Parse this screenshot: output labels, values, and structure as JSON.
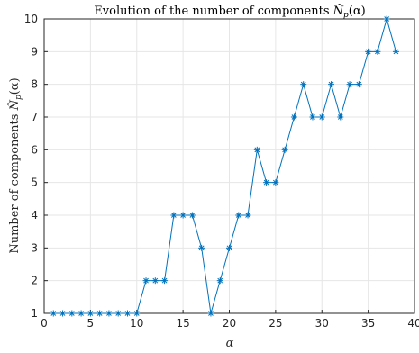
{
  "chart_data": {
    "type": "line",
    "title": "Evolution of the number of components N̂p(α)",
    "title_parts": {
      "prefix": "Evolution of the number of components ",
      "symbol": "N̂",
      "subscript": "p",
      "arg": "(α)"
    },
    "xlabel": "α",
    "ylabel": "Number of components N̂p(α)",
    "ylabel_parts": {
      "prefix": "Number of components ",
      "symbol": "N̂",
      "subscript": "p",
      "arg": "(α)"
    },
    "xlim": [
      0,
      40
    ],
    "ylim": [
      1,
      10
    ],
    "xticks": [
      0,
      5,
      10,
      15,
      20,
      25,
      30,
      35,
      40
    ],
    "yticks": [
      1,
      2,
      3,
      4,
      5,
      6,
      7,
      8,
      9,
      10
    ],
    "grid": true,
    "marker": "asterisk",
    "series": [
      {
        "color": "#0072BD",
        "x": [
          1,
          2,
          3,
          4,
          5,
          6,
          7,
          8,
          9,
          10,
          11,
          12,
          13,
          14,
          15,
          16,
          17,
          18,
          19,
          20,
          21,
          22,
          23,
          24,
          25,
          26,
          27,
          28,
          29,
          30,
          31,
          32,
          33,
          34,
          35,
          36,
          37,
          38
        ],
        "y": [
          1,
          1,
          1,
          1,
          1,
          1,
          1,
          1,
          1,
          1,
          2,
          2,
          2,
          4,
          4,
          4,
          3,
          1,
          2,
          3,
          4,
          4,
          6,
          5,
          5,
          6,
          7,
          8,
          7,
          7,
          8,
          7,
          8,
          8,
          9,
          9,
          10,
          9
        ]
      }
    ]
  }
}
